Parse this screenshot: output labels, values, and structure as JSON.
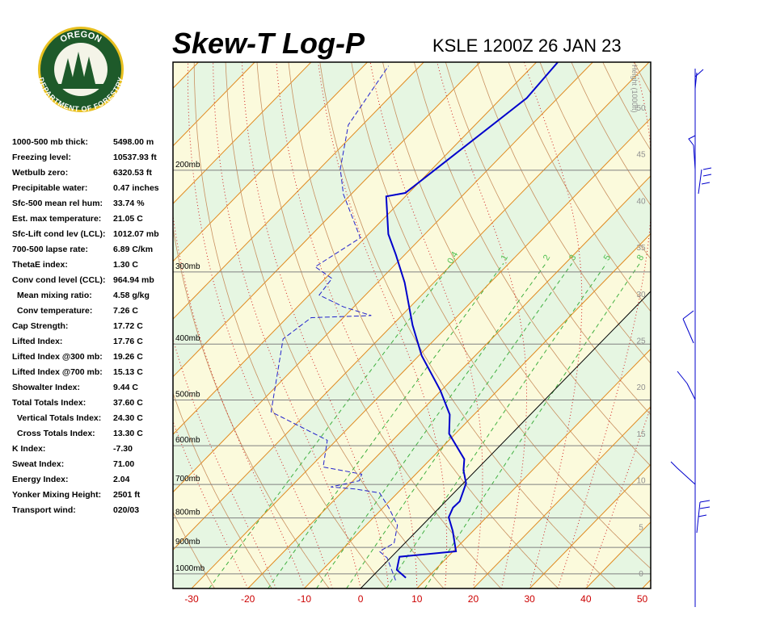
{
  "header": {
    "title": "Skew-T Log-P",
    "station": "KSLE 1200Z 26 JAN 23"
  },
  "logo": {
    "top": "OREGON",
    "bottom": "DEPARTMENT OF FORESTRY"
  },
  "stats": [
    {
      "label": "1000-500 mb thick:",
      "value": "5498.00 m"
    },
    {
      "label": "Freezing level:",
      "value": "10537.93 ft"
    },
    {
      "label": "Wetbulb zero:",
      "value": "6320.53 ft"
    },
    {
      "label": "Precipitable water:",
      "value": "0.47 inches"
    },
    {
      "label": "Sfc-500 mean rel hum:",
      "value": "33.74 %"
    },
    {
      "label": "Est. max temperature:",
      "value": "21.05 C"
    },
    {
      "label": "Sfc-Lift cond lev (LCL):",
      "value": "1012.07 mb"
    },
    {
      "label": "700-500 lapse rate:",
      "value": "6.89 C/km"
    },
    {
      "label": "ThetaE index:",
      "value": "1.30 C"
    },
    {
      "label": "Conv cond level (CCL):",
      "value": "964.94 mb"
    },
    {
      "label": "Mean mixing ratio:",
      "value": "4.58 g/kg"
    },
    {
      "label": "Conv temperature:",
      "value": "7.26 C"
    },
    {
      "label": "Cap Strength:",
      "value": "17.72 C"
    },
    {
      "label": "Lifted Index:",
      "value": "17.76 C"
    },
    {
      "label": "Lifted Index @300 mb:",
      "value": "19.26 C"
    },
    {
      "label": "Lifted Index @700 mb:",
      "value": "15.13 C"
    },
    {
      "label": "Showalter Index:",
      "value": "9.44 C"
    },
    {
      "label": "Total Totals Index:",
      "value": "37.60 C"
    },
    {
      "label": "Vertical Totals Index:",
      "value": "24.30 C"
    },
    {
      "label": "Cross Totals Index:",
      "value": "13.30 C"
    },
    {
      "label": "K Index:",
      "value": "-7.30"
    },
    {
      "label": "Sweat Index:",
      "value": "71.00"
    },
    {
      "label": "Energy Index:",
      "value": "2.04"
    },
    {
      "label": "Yonker Mixing Height:",
      "value": "2501 ft"
    },
    {
      "label": "Transport wind:",
      "value": "020/03"
    }
  ],
  "chart_data": {
    "type": "skewt",
    "xlim": [
      -33.3,
      51.5
    ],
    "xticks": [
      -30,
      -20,
      -10,
      0,
      10,
      20,
      30,
      40,
      50
    ],
    "ylim": [
      1060,
      130
    ],
    "log_y": true,
    "yticks": [
      {
        "value": 1000,
        "label": "1000mb"
      },
      {
        "value": 900,
        "label": "900mb"
      },
      {
        "value": 800,
        "label": "800mb"
      },
      {
        "value": 700,
        "label": "700mb"
      },
      {
        "value": 600,
        "label": "600mb"
      },
      {
        "value": 500,
        "label": "500mb"
      },
      {
        "value": 400,
        "label": "400mb"
      },
      {
        "value": 300,
        "label": "300mb"
      },
      {
        "value": 200,
        "label": "200mb"
      }
    ],
    "height_axis": {
      "label": "Height (1000ft)",
      "lim": [
        -1.65,
        54.85
      ],
      "ticks": [
        0,
        5,
        10,
        15,
        20,
        25,
        30,
        35,
        40,
        45,
        50
      ]
    },
    "mixing_ratio_labels": [
      {
        "value": 0.4,
        "label": "0.4"
      },
      1,
      2,
      3,
      5,
      8
    ],
    "series": [
      {
        "color": "#0000cc",
        "style": "solid",
        "values": [
          6.2,
          3.2,
          1.4,
          10.5,
          6.4,
          3.3,
          2.4,
          2.5,
          0.5,
          -2.2,
          -4.0,
          -11.1,
          -14.3,
          -20.2,
          -29.5,
          -36.4,
          -45.2,
          -51.6,
          -56.5,
          -63.4,
          -60.6,
          -59.1,
          -55.5,
          -56.2
        ],
        "pressure": [
          1016,
          984,
          934,
          914,
          843,
          798,
          768,
          749,
          697,
          662,
          633,
          572,
          530,
          481,
          419,
          371,
          313,
          280,
          258,
          222,
          219,
          196,
          150,
          130
        ]
      },
      {
        "color": "#2222cc",
        "style": "dashed",
        "values": [
          4.8,
          -0.6,
          -3.1,
          -1.9,
          -4.4,
          -9.0,
          -13.2,
          -18.2,
          -22.9,
          -18.9,
          -19.6,
          -27.7,
          -31.6,
          -46.5,
          -57.0,
          -55.7,
          -45.4,
          -51.8,
          -58.2,
          -58.8,
          -63.8,
          -60.8,
          -71.4,
          -76.3,
          -82.5,
          -85.6
        ],
        "pressure": [
          1026,
          938,
          914,
          885,
          824,
          768,
          724,
          713,
          707,
          690,
          672,
          653,
          587,
          524,
          392,
          360,
          357,
          345,
          329,
          308,
          294,
          262,
          220,
          199,
          167,
          132
        ]
      }
    ]
  }
}
